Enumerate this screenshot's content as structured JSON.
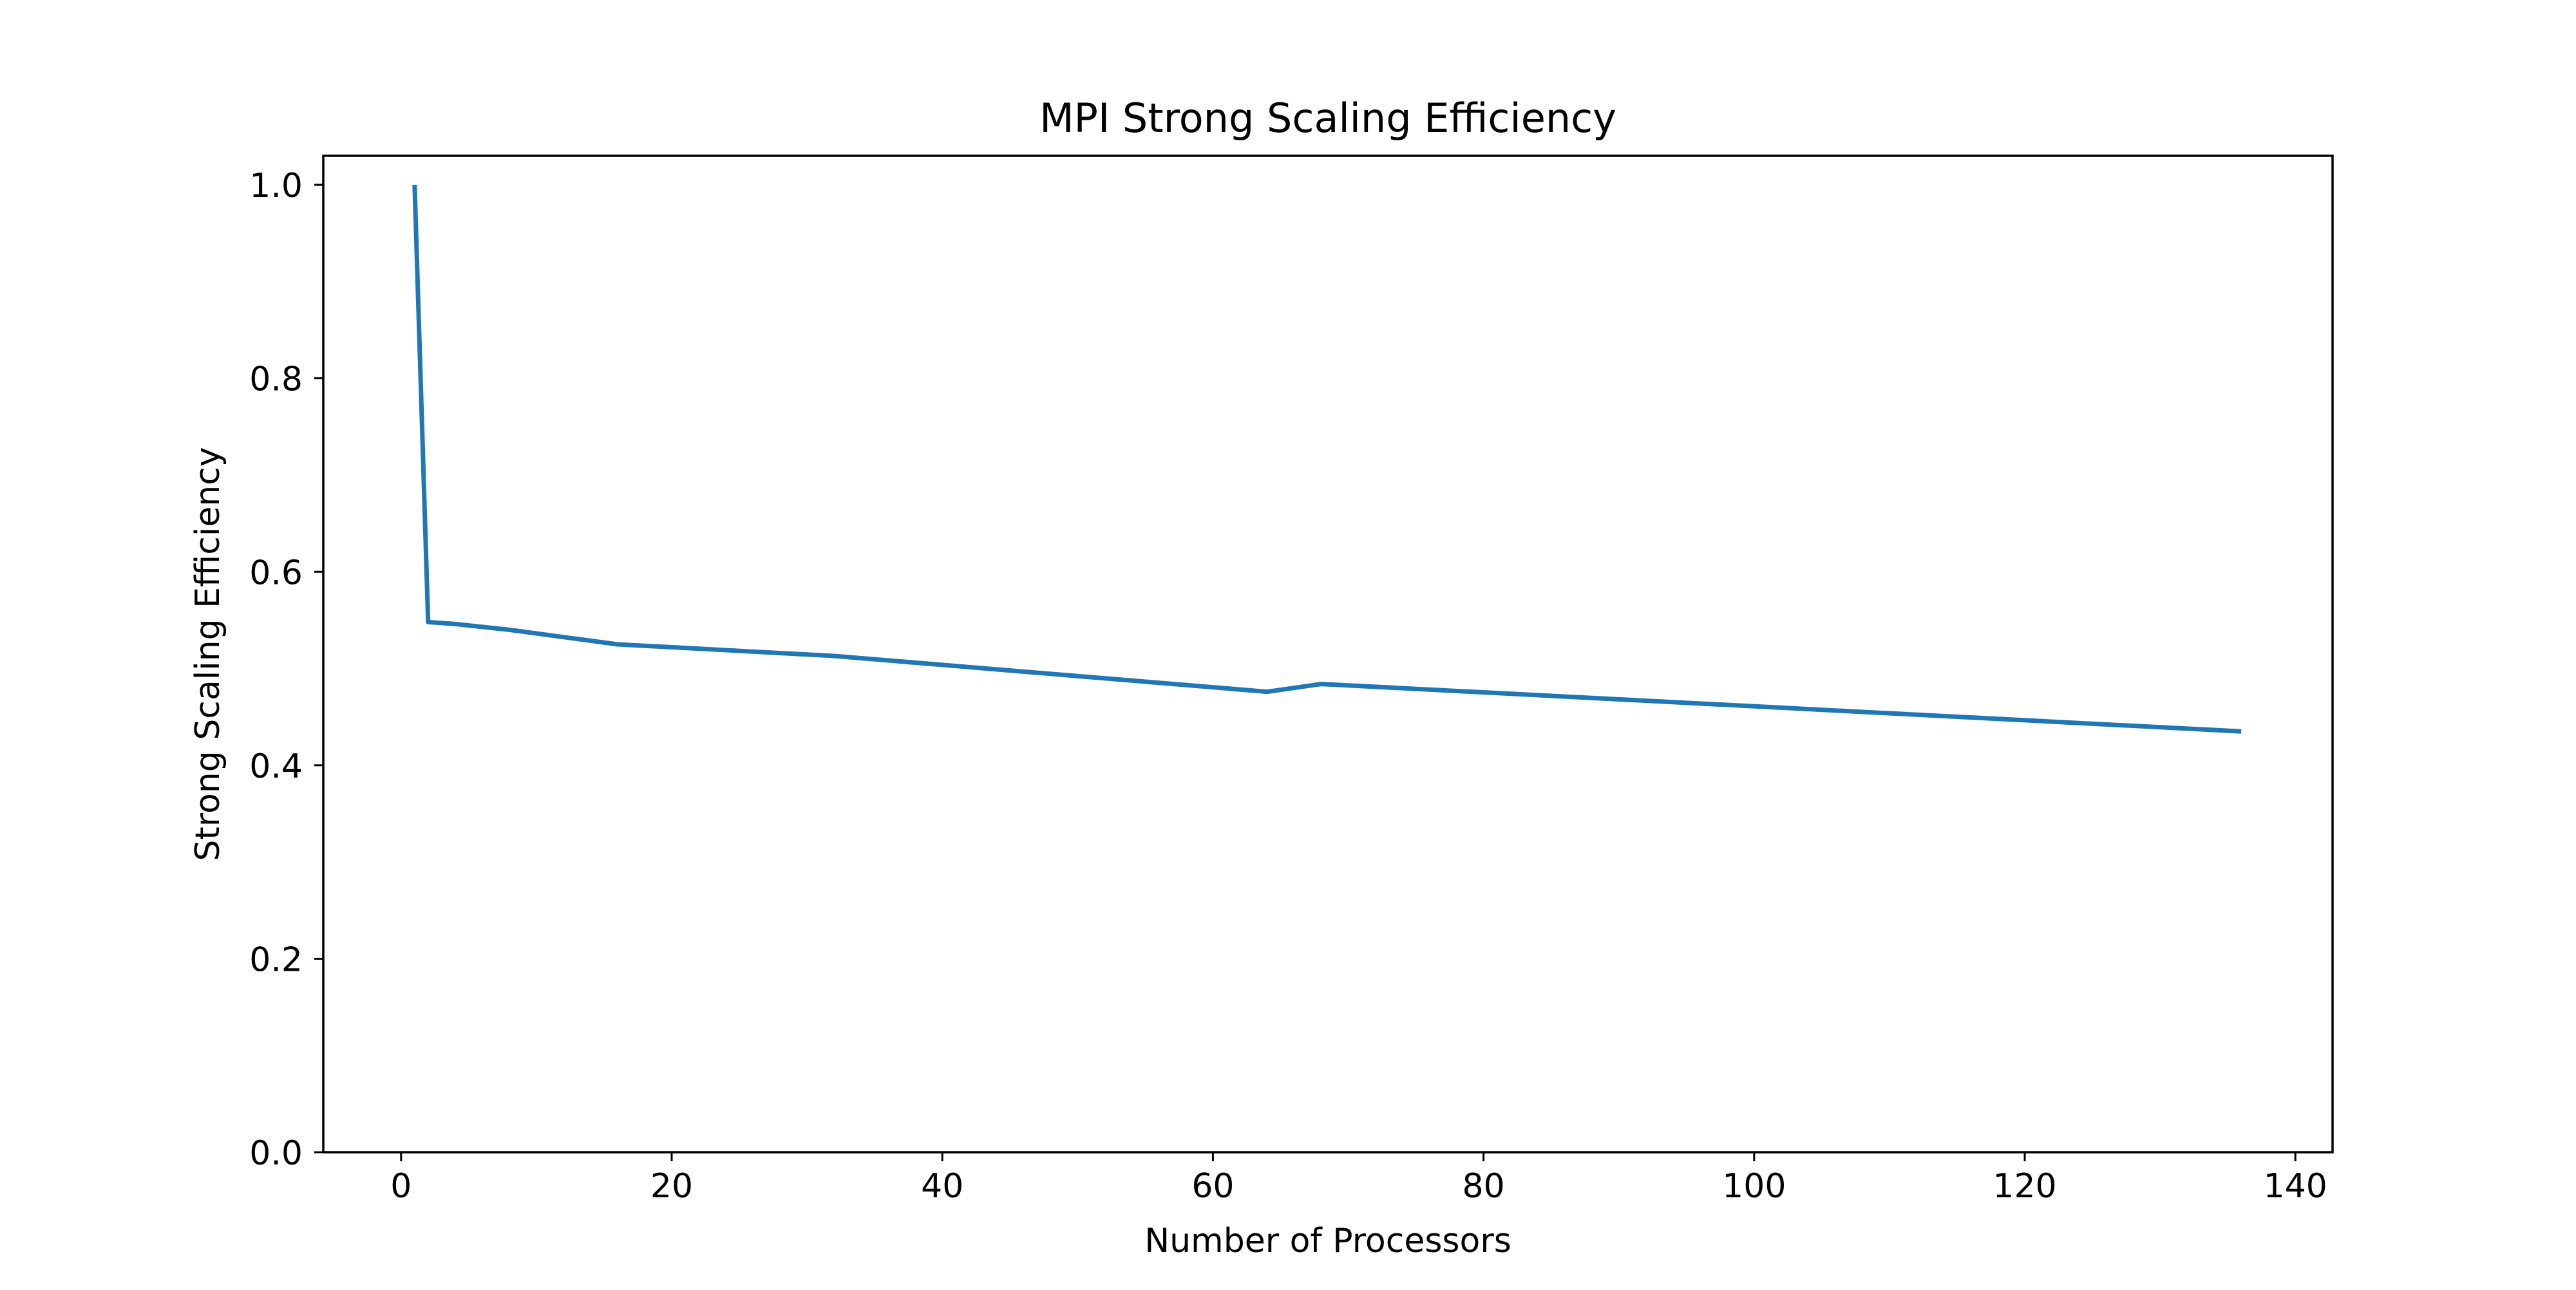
{
  "chart_data": {
    "type": "line",
    "title": "MPI Strong Scaling Efficiency",
    "xlabel": "Number of Processors",
    "ylabel": "Strong Scaling Efficiency",
    "xlim": [
      -5.75,
      142.75
    ],
    "ylim": [
      0,
      1.03
    ],
    "xticks": [
      0,
      20,
      40,
      60,
      80,
      100,
      120,
      140
    ],
    "yticks": [
      0.0,
      0.2,
      0.4,
      0.6,
      0.8,
      1.0
    ],
    "xtick_labels": [
      "0",
      "20",
      "40",
      "60",
      "80",
      "100",
      "120",
      "140"
    ],
    "ytick_labels": [
      "0.0",
      "0.2",
      "0.4",
      "0.6",
      "0.8",
      "1.0"
    ],
    "grid": false,
    "legend": "none",
    "series": [
      {
        "color": "#1f77b4",
        "x": [
          1,
          2,
          4,
          8,
          16,
          32,
          64,
          68,
          136
        ],
        "y": [
          1.0,
          0.548,
          0.546,
          0.54,
          0.525,
          0.513,
          0.476,
          0.484,
          0.435
        ]
      }
    ]
  }
}
